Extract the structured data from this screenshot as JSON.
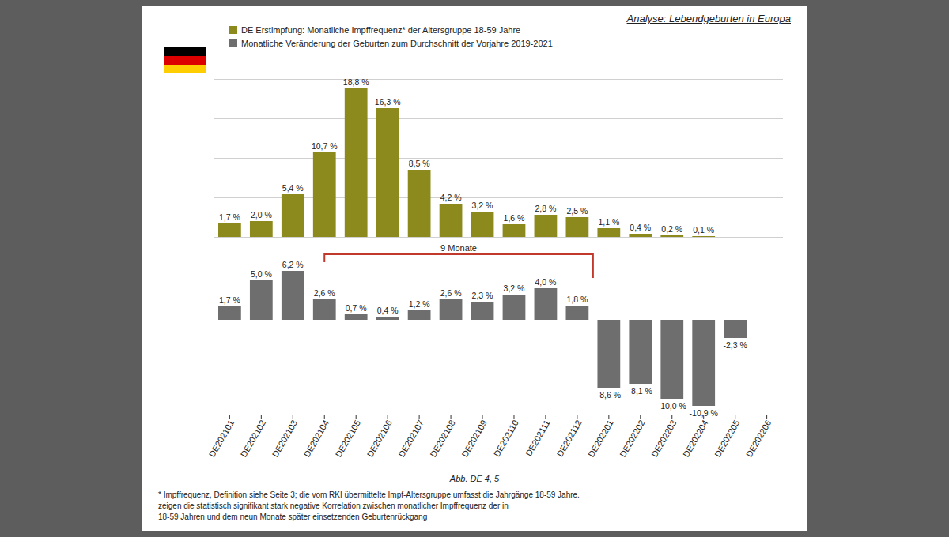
{
  "chart_data": {
    "type": "bar",
    "title": "Analyse: Lebendgeburten in Europa",
    "categories": [
      "DE202101",
      "DE202102",
      "DE202103",
      "DE202104",
      "DE202105",
      "DE202106",
      "DE202107",
      "DE202108",
      "DE202109",
      "DE202110",
      "DE202111",
      "DE202112",
      "DE202201",
      "DE202202",
      "DE202203",
      "DE202204",
      "DE202205",
      "DE202206"
    ],
    "series": [
      {
        "name": "DE Erstimpfung: Monatliche Impffrequenz* der Altersgruppe 18-59 Jahre",
        "color": "#8c8a1c",
        "values": [
          1.7,
          2.0,
          5.4,
          10.7,
          18.8,
          16.3,
          8.5,
          4.2,
          3.2,
          1.6,
          2.8,
          2.5,
          1.1,
          0.4,
          0.2,
          0.1,
          null,
          null
        ],
        "value_labels": [
          "1,7 %",
          "2,0 %",
          "5,4 %",
          "10,7 %",
          "18,8 %",
          "16,3 %",
          "8,5 %",
          "4,2 %",
          "3,2 %",
          "1,6 %",
          "2,8 %",
          "2,5 %",
          "1,1 %",
          "0,4 %",
          "0,2 %",
          "0,1 %",
          null,
          null
        ]
      },
      {
        "name": "Monatliche Veränderung der Geburten zum Durchschnitt der Vorjahre 2019-2021",
        "color": "#6e6e6e",
        "axis": "y2",
        "values": [
          1.7,
          5.0,
          6.2,
          2.6,
          0.7,
          0.4,
          1.2,
          2.6,
          2.3,
          3.2,
          4.0,
          1.8,
          -8.6,
          -8.1,
          -10.0,
          -10.9,
          -2.3,
          null
        ],
        "value_labels": [
          "1,7 %",
          "5,0 %",
          "6,2 %",
          "2,6 %",
          "0,7 %",
          "0,4 %",
          "1,2 %",
          "2,6 %",
          "2,3 %",
          "3,2 %",
          "4,0 %",
          "1,8 %",
          "-8,6 %",
          "-8,1 %",
          "-10,0 %",
          "-10,9 %",
          "-2,3 %",
          null
        ]
      }
    ],
    "ylim": [
      0,
      20
    ],
    "yticks": [
      0,
      5,
      10,
      15,
      20
    ],
    "y2lim": [
      -12,
      7
    ],
    "y2ticks": [],
    "grid": true,
    "legend": "top-left",
    "data_labels": true,
    "tick_labels": "x",
    "annotations": [
      {
        "text": "9 Monate",
        "from": "DE202104",
        "to": "DE202201"
      }
    ],
    "caption": "Abb. DE 4, 5",
    "notes": [
      "* Impffrequenz, Definition siehe Seite 3; die vom RKI übermittelte Impf-Altersgruppe umfasst die Jahrgänge 18-59 Jahre.",
      "zeigen die statistisch signifikant stark negative Korrelation zwischen monatlicher Impffrequenz der in",
      "18-59 Jahren und dem neun Monate später einsetzenden Geburtenrückgang"
    ]
  }
}
